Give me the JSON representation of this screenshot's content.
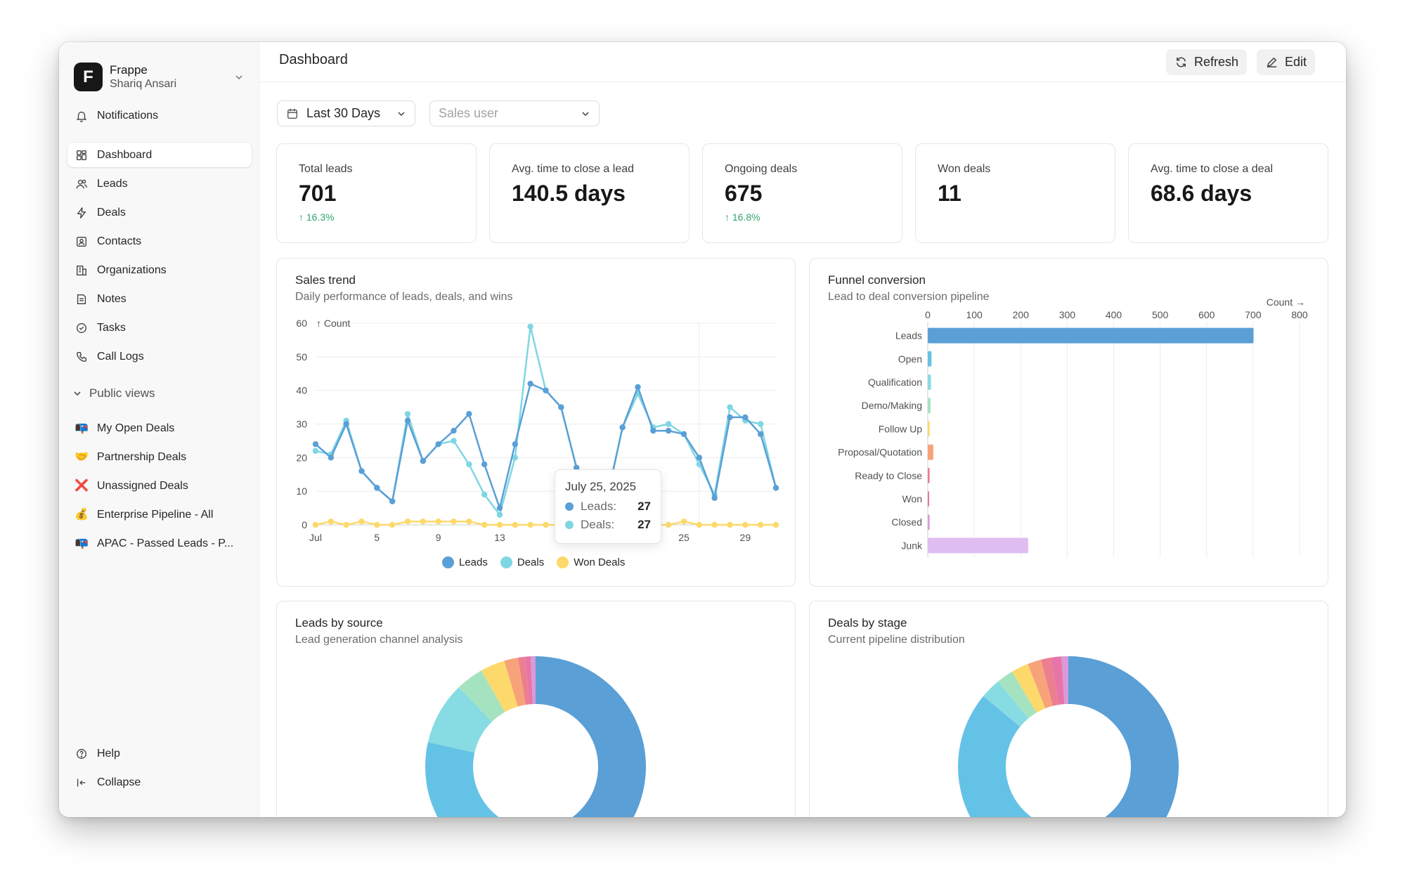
{
  "workspace": {
    "logo_letter": "F",
    "name": "Frappe",
    "user": "Shariq Ansari"
  },
  "sidebar": {
    "top_items": [
      {
        "label": "Notifications",
        "icon": "bell-icon"
      }
    ],
    "items": [
      {
        "label": "Dashboard",
        "icon": "dashboard-icon",
        "active": true
      },
      {
        "label": "Leads",
        "icon": "users-icon"
      },
      {
        "label": "Deals",
        "icon": "lightning-icon"
      },
      {
        "label": "Contacts",
        "icon": "contact-icon"
      },
      {
        "label": "Organizations",
        "icon": "building-icon"
      },
      {
        "label": "Notes",
        "icon": "note-icon"
      },
      {
        "label": "Tasks",
        "icon": "check-circle-icon"
      },
      {
        "label": "Call Logs",
        "icon": "phone-icon"
      }
    ],
    "public_views_label": "Public views",
    "public_views": [
      {
        "label": "My Open Deals",
        "emoji": "📭"
      },
      {
        "label": "Partnership Deals",
        "emoji": "🤝"
      },
      {
        "label": "Unassigned Deals",
        "emoji": "❌"
      },
      {
        "label": "Enterprise Pipeline - All",
        "emoji": "💰"
      },
      {
        "label": "APAC - Passed Leads - P...",
        "emoji": "📭"
      }
    ],
    "help_label": "Help",
    "collapse_label": "Collapse"
  },
  "header": {
    "title": "Dashboard",
    "refresh_label": "Refresh",
    "edit_label": "Edit"
  },
  "filters": {
    "date_range": "Last 30 Days",
    "sales_user_placeholder": "Sales user"
  },
  "kpis": [
    {
      "label": "Total leads",
      "value": "701",
      "delta": "16.3%"
    },
    {
      "label": "Avg. time to close a lead",
      "value": "140.5 days",
      "delta": ""
    },
    {
      "label": "Ongoing deals",
      "value": "675",
      "delta": "16.8%"
    },
    {
      "label": "Won deals",
      "value": "11",
      "delta": ""
    },
    {
      "label": "Avg. time to close a deal",
      "value": "68.6 days",
      "delta": ""
    }
  ],
  "colors": {
    "leads": "#5a9fd6",
    "deals": "#7fd6e3",
    "won": "#fcd96a",
    "positive": "#30a66d",
    "grid": "#ececec"
  },
  "sales_trend": {
    "title": "Sales trend",
    "subtitle": "Daily performance of leads, deals, and wins",
    "tooltip": {
      "date": "July 25, 2025",
      "leads_label": "Leads:",
      "leads_value": "27",
      "deals_label": "Deals:",
      "deals_value": "27"
    }
  },
  "funnel": {
    "title": "Funnel conversion",
    "subtitle": "Lead to deal conversion pipeline"
  },
  "leads_by_source": {
    "title": "Leads by source",
    "subtitle": "Lead generation channel analysis"
  },
  "deals_by_stage": {
    "title": "Deals by stage",
    "subtitle": "Current pipeline distribution"
  },
  "chart_data": [
    {
      "type": "line",
      "title": "Sales trend",
      "ylabel": "Count",
      "ylim": [
        0,
        60
      ],
      "yticks": [
        0,
        10,
        20,
        30,
        40,
        50,
        60
      ],
      "x_tick_labels": [
        "Jul",
        "5",
        "9",
        "13",
        "",
        "25",
        "29"
      ],
      "x_tick_days": [
        1,
        5,
        9,
        13,
        17,
        25,
        29
      ],
      "xlim": [
        1,
        31
      ],
      "grid": true,
      "legend": "bottom",
      "series": [
        {
          "name": "Leads",
          "color": "#5a9fd6",
          "x": [
            1,
            2,
            3,
            4,
            5,
            6,
            7,
            8,
            9,
            10,
            11,
            12,
            13,
            14,
            15,
            16,
            17,
            18,
            19,
            20,
            21,
            22,
            23,
            24,
            25,
            26,
            27,
            28,
            29,
            30,
            31
          ],
          "values": [
            24,
            20,
            30,
            16,
            11,
            7,
            31,
            19,
            24,
            28,
            33,
            18,
            5,
            24,
            42,
            40,
            35,
            17,
            12,
            8,
            29,
            41,
            28,
            28,
            27,
            20,
            8,
            32,
            32,
            27,
            11
          ]
        },
        {
          "name": "Deals",
          "color": "#7fd6e3",
          "x": [
            1,
            2,
            3,
            4,
            5,
            6,
            7,
            8,
            9,
            10,
            11,
            12,
            13,
            14,
            15,
            16,
            17,
            18,
            19,
            20,
            21,
            22,
            23,
            24,
            25,
            26,
            27,
            28,
            29,
            30,
            31
          ],
          "values": [
            22,
            21,
            31,
            16,
            11,
            7,
            33,
            19,
            24,
            25,
            18,
            9,
            3,
            20,
            59,
            40,
            35,
            17,
            13,
            8,
            29,
            39,
            29,
            30,
            27,
            18,
            9,
            35,
            31,
            30,
            11
          ]
        },
        {
          "name": "Won Deals",
          "color": "#fcd96a",
          "x": [
            1,
            2,
            3,
            4,
            5,
            6,
            7,
            8,
            9,
            10,
            11,
            12,
            13,
            14,
            15,
            16,
            17,
            18,
            19,
            20,
            21,
            22,
            23,
            24,
            25,
            26,
            27,
            28,
            29,
            30,
            31
          ],
          "values": [
            0,
            1,
            0,
            1,
            0,
            0,
            1,
            1,
            1,
            1,
            1,
            0,
            0,
            0,
            0,
            0,
            0,
            0,
            0,
            0,
            0,
            0,
            0,
            0,
            1,
            0,
            0,
            0,
            0,
            0,
            0
          ]
        }
      ]
    },
    {
      "type": "bar",
      "orientation": "horizontal",
      "title": "Funnel conversion",
      "xlabel": "Count",
      "xlim": [
        0,
        800
      ],
      "xticks": [
        0,
        100,
        200,
        300,
        400,
        500,
        600,
        700,
        800
      ],
      "categories": [
        "Leads",
        "Open",
        "Qualification",
        "Demo/Making",
        "Follow Up",
        "Proposal/Quotation",
        "Ready to Close",
        "Won",
        "Closed",
        "Junk"
      ],
      "values": [
        701,
        8,
        7,
        6,
        4,
        12,
        4,
        3,
        4,
        216
      ],
      "colors": [
        "#5a9fd6",
        "#64c2e6",
        "#86dce2",
        "#a5e3c0",
        "#fcd96a",
        "#f7a37a",
        "#ec7f8f",
        "#e775a8",
        "#d89ad8",
        "#e0bdf0"
      ],
      "grid": true
    },
    {
      "type": "pie",
      "title": "Leads by source",
      "donut": true,
      "values": [
        55,
        22,
        9,
        4,
        3.5,
        2,
        1,
        0.8,
        0.7
      ],
      "colors": [
        "#5a9fd6",
        "#64c2e6",
        "#86dce2",
        "#a5e3c0",
        "#fcd96a",
        "#f7a37a",
        "#ec7f8f",
        "#e775a8",
        "#d89ad8"
      ]
    },
    {
      "type": "pie",
      "title": "Deals by stage",
      "donut": true,
      "values": [
        56,
        30,
        3,
        2.5,
        2.5,
        2,
        1.5,
        1.5,
        1
      ],
      "colors": [
        "#5a9fd6",
        "#64c2e6",
        "#86dce2",
        "#a5e3c0",
        "#fcd96a",
        "#f7a37a",
        "#ec7f8f",
        "#e775a8",
        "#d89ad8"
      ]
    }
  ]
}
